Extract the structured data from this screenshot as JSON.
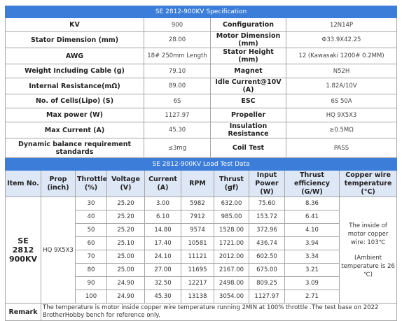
{
  "spec": {
    "title": "SE 2812-900KV  Specification",
    "rows": [
      [
        "KV",
        "900",
        "Configuration",
        "12N14P"
      ],
      [
        "Stator Dimension (mm)",
        "28.00",
        "Motor Dimension (mm)",
        "Φ33.9X42.25"
      ],
      [
        "AWG",
        "18#  250mm Length",
        "Stator Height (mm)",
        "12 (Kawasaki 1200# 0.2MM)"
      ],
      [
        "Weight Including Cable (g)",
        "79.10",
        "Magnet",
        "N52H"
      ],
      [
        "Internal Resistance(mΩ)",
        "89.00",
        "Idle Current@10V (A)",
        "1.82A/10V"
      ],
      [
        "No. of Cells(Lipo) (S)",
        "6S",
        "ESC",
        "6S 50A"
      ],
      [
        "Max power (W)",
        "1127.97",
        "Propeller",
        "HQ 9X5X3"
      ],
      [
        "Max Current (A)",
        "45.30",
        "Insulation Resistance",
        "≥0.5MΩ"
      ],
      [
        "Dynamic balance requirement standards",
        "≤3mg",
        "Coil Test",
        "PASS"
      ]
    ]
  },
  "load": {
    "title": "SE 2812-900KV Load Test Data",
    "headers": [
      "Item No.",
      "Prop (inch)",
      "Throttle (%)",
      "Voltage (V)",
      "Current (A)",
      "RPM",
      "Thrust (gf)",
      "Input Power (W)",
      "Thrust efficiency (G/W)",
      "Copper wire temperature (°C)"
    ],
    "item": "SE 2812 900KV",
    "prop": "HQ 9X5X3",
    "rows": [
      [
        "30",
        "25.20",
        "3.00",
        "5982",
        "632.00",
        "75.60",
        "8.36"
      ],
      [
        "40",
        "25.20",
        "6.10",
        "7912",
        "985.00",
        "153.72",
        "6.41"
      ],
      [
        "50",
        "25.20",
        "14.80",
        "9574",
        "1528.00",
        "372.96",
        "4.10"
      ],
      [
        "60",
        "25.10",
        "17.40",
        "10581",
        "1721.00",
        "436.74",
        "3.94"
      ],
      [
        "70",
        "25.00",
        "24.10",
        "11121",
        "2012.00",
        "602.50",
        "3.34"
      ],
      [
        "80",
        "25.00",
        "27.00",
        "11695",
        "2167.00",
        "675.00",
        "3.21"
      ],
      [
        "90",
        "24.90",
        "32.50",
        "12217",
        "2498.00",
        "809.25",
        "3.09"
      ],
      [
        "100",
        "24.90",
        "45.30",
        "13138",
        "3054.00",
        "1127.97",
        "2.71"
      ]
    ],
    "copper_note": [
      "The inside of motor copper wire: 103℃",
      "(Ambient temperature is 26 ℃)"
    ]
  },
  "remark": {
    "label": "Remark",
    "text": "The temperature is motor inside copper wire temperature running 2MIN at 100% throttle .The test base on 2022 BrotherHobby bench for reference only."
  }
}
